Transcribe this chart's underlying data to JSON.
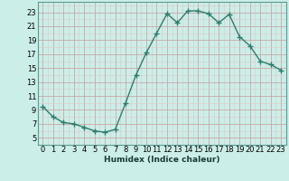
{
  "x": [
    0,
    1,
    2,
    3,
    4,
    5,
    6,
    7,
    8,
    9,
    10,
    11,
    12,
    13,
    14,
    15,
    16,
    17,
    18,
    19,
    20,
    21,
    22,
    23
  ],
  "y": [
    9.5,
    8.0,
    7.2,
    7.0,
    6.5,
    6.0,
    5.8,
    6.2,
    10.0,
    14.0,
    17.2,
    20.0,
    22.8,
    21.5,
    23.2,
    23.2,
    22.8,
    21.5,
    22.7,
    19.5,
    18.2,
    16.0,
    15.5,
    14.7
  ],
  "line_color": "#2e7d6e",
  "marker": "+",
  "markersize": 4.0,
  "linewidth": 1.0,
  "bg_color": "#cceee8",
  "major_grid_color": "#c8a8a8",
  "minor_grid_color": "#ddc8c8",
  "xlabel": "Humidex (Indice chaleur)",
  "xlabel_fontsize": 6.5,
  "ytick_labels": [
    5,
    7,
    9,
    11,
    13,
    15,
    17,
    19,
    21,
    23
  ],
  "xlim": [
    -0.5,
    23.5
  ],
  "ylim": [
    4.0,
    24.5
  ],
  "tick_fontsize": 6.0
}
